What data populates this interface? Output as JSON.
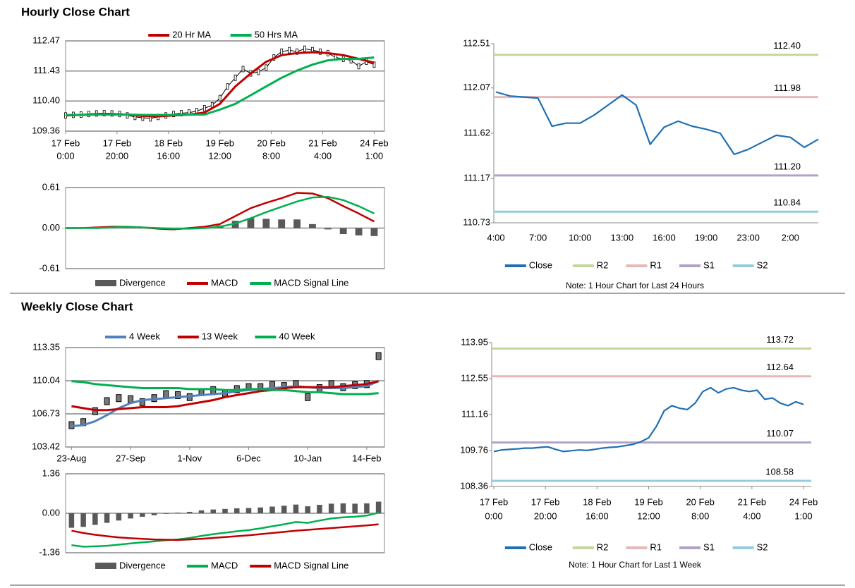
{
  "sections": [
    "Hourly Close Chart",
    "Weekly Close Chart"
  ],
  "chart_data": [
    {
      "type": "candlestick",
      "grid": true,
      "xlim": [
        0,
        124
      ],
      "xticks": [
        {
          "value": 0,
          "label": [
            "17 Feb",
            "0:00"
          ]
        },
        {
          "value": 20,
          "label": [
            "17 Feb",
            "20:00"
          ]
        },
        {
          "value": 40,
          "label": [
            "18 Feb",
            "16:00"
          ]
        },
        {
          "value": 60,
          "label": [
            "19 Feb",
            "12:00"
          ]
        },
        {
          "value": 80,
          "label": [
            "20 Feb",
            "8:00"
          ]
        },
        {
          "value": 100,
          "label": [
            "21 Feb",
            "4:00"
          ]
        },
        {
          "value": 120,
          "label": [
            "24 Feb",
            "1:00"
          ]
        }
      ],
      "ylim": [
        109.36,
        112.47
      ],
      "yticks": [
        109.36,
        {
          "value": 110.4,
          "label": "110.40"
        },
        111.43,
        112.47
      ],
      "close": {
        "color": "#000000",
        "x": [
          0,
          3,
          6,
          9,
          12,
          15,
          18,
          21,
          24,
          27,
          30,
          33,
          36,
          39,
          42,
          45,
          48,
          51,
          54,
          57,
          60,
          63,
          66,
          69,
          72,
          75,
          78,
          81,
          84,
          87,
          90,
          93,
          96,
          99,
          102,
          105,
          108,
          111,
          114,
          117,
          120
        ],
        "values": [
          109.9,
          109.92,
          109.93,
          109.95,
          109.97,
          109.98,
          109.97,
          109.95,
          109.9,
          109.85,
          109.82,
          109.8,
          109.85,
          109.9,
          109.95,
          109.98,
          110.0,
          110.05,
          110.15,
          110.25,
          110.5,
          110.9,
          111.2,
          111.5,
          111.35,
          111.4,
          111.55,
          111.9,
          112.1,
          112.15,
          112.1,
          112.2,
          112.15,
          112.1,
          112.05,
          111.9,
          111.85,
          111.8,
          111.6,
          111.75,
          111.65
        ]
      },
      "x": [
        0,
        6,
        12,
        18,
        24,
        30,
        36,
        42,
        48,
        54,
        60,
        66,
        72,
        78,
        84,
        90,
        96,
        102,
        108,
        114,
        120
      ],
      "series": [
        {
          "name": "20 Hr MA",
          "color": "#c00000",
          "values": [
            109.9,
            109.92,
            109.95,
            109.95,
            109.93,
            109.88,
            109.87,
            109.9,
            109.93,
            110.0,
            110.3,
            110.9,
            111.35,
            111.75,
            111.98,
            112.05,
            112.08,
            112.05,
            111.98,
            111.85,
            111.72
          ]
        },
        {
          "name": "50 Hrs MA",
          "color": "#00b050",
          "values": [
            109.92,
            109.92,
            109.93,
            109.93,
            109.93,
            109.92,
            109.92,
            109.92,
            109.93,
            109.93,
            110.1,
            110.3,
            110.6,
            110.9,
            111.2,
            111.45,
            111.65,
            111.8,
            111.85,
            111.85,
            111.9
          ]
        }
      ]
    },
    {
      "type": "macd",
      "grid": true,
      "xlim": [
        0,
        124
      ],
      "ylim": [
        -0.61,
        0.61
      ],
      "yticks": [
        -0.61,
        {
          "value": 0,
          "label": "0.00"
        },
        0.61
      ],
      "x": [
        0,
        6,
        12,
        18,
        24,
        30,
        36,
        42,
        48,
        54,
        60,
        66,
        72,
        78,
        84,
        90,
        96,
        102,
        108,
        114,
        120
      ],
      "series": [
        {
          "name": "Divergence",
          "color": "#595959",
          "style": "bar",
          "values": [
            0,
            0,
            0.01,
            0.01,
            0,
            0,
            -0.01,
            -0.01,
            0.01,
            0.02,
            0.04,
            0.11,
            0.15,
            0.14,
            0.13,
            0.13,
            0.06,
            -0.02,
            -0.09,
            -0.11,
            -0.12
          ]
        },
        {
          "name": "MACD",
          "color": "#c00000",
          "values": [
            0,
            0,
            0.01,
            0.02,
            0.02,
            0.01,
            -0.01,
            -0.02,
            0,
            0.02,
            0.06,
            0.18,
            0.3,
            0.38,
            0.45,
            0.53,
            0.52,
            0.45,
            0.33,
            0.22,
            0.1
          ]
        },
        {
          "name": "MACD Signal Line",
          "color": "#00b050",
          "values": [
            0,
            0,
            0,
            0.01,
            0.02,
            0.01,
            0,
            -0.01,
            -0.01,
            0,
            0.02,
            0.07,
            0.15,
            0.24,
            0.32,
            0.4,
            0.46,
            0.47,
            0.42,
            0.33,
            0.22
          ]
        }
      ]
    },
    {
      "type": "line",
      "grid": false,
      "categories": [
        "4:00",
        null,
        null,
        "7:00",
        null,
        null,
        "10:00",
        null,
        null,
        "13:00",
        null,
        null,
        "16:00",
        null,
        null,
        "19:00",
        null,
        null,
        "23:00",
        null,
        null,
        "2:00",
        null,
        null
      ],
      "ylim": [
        110.73,
        112.51
      ],
      "yticks": [
        110.73,
        111.17,
        111.62,
        112.07,
        112.51
      ],
      "series": [
        {
          "name": "Close",
          "color": "#1f6fb4",
          "values": [
            112.03,
            111.99,
            111.98,
            111.97,
            111.69,
            111.72,
            111.72,
            111.8,
            111.9,
            112.0,
            111.9,
            111.51,
            111.68,
            111.74,
            111.69,
            111.66,
            111.62,
            111.41,
            111.46,
            111.53,
            111.6,
            111.58,
            111.48,
            111.56
          ]
        },
        {
          "name": "R2",
          "color": "#c3d69b",
          "value": 112.4,
          "value_label": "112.40"
        },
        {
          "name": "R1",
          "color": "#e6b9b8",
          "value": 111.98,
          "value_label": "111.98"
        },
        {
          "name": "S1",
          "color": "#b3a2c7",
          "value": 111.2,
          "value_label": "111.20"
        },
        {
          "name": "S2",
          "color": "#93cddd",
          "value": 110.84,
          "value_label": "110.84"
        }
      ],
      "note": "Note: 1 Hour Chart for Last 24 Hours"
    },
    {
      "type": "candlestick",
      "grid": true,
      "xlim": [
        -0.5,
        26.5
      ],
      "xticks": [
        {
          "value": 0,
          "label": "23-Aug"
        },
        {
          "value": 5,
          "label": "27-Sep"
        },
        {
          "value": 10,
          "label": "1-Nov"
        },
        {
          "value": 15,
          "label": "6-Dec"
        },
        {
          "value": 20,
          "label": "10-Jan"
        },
        {
          "value": 25,
          "label": "14-Feb"
        }
      ],
      "ylim": [
        103.42,
        113.35
      ],
      "yticks": [
        103.42,
        106.73,
        110.04,
        113.35
      ],
      "x": [
        0,
        1,
        2,
        3,
        4,
        5,
        6,
        7,
        8,
        9,
        10,
        11,
        12,
        13,
        14,
        15,
        16,
        17,
        18,
        19,
        20,
        21,
        22,
        23,
        24,
        25,
        26
      ],
      "close": {
        "color": "#000000",
        "values": [
          105.6,
          105.9,
          107.0,
          108.0,
          108.3,
          108.2,
          107.9,
          108.3,
          108.7,
          108.6,
          108.4,
          108.9,
          109.1,
          108.8,
          109.2,
          109.4,
          109.4,
          109.6,
          109.5,
          109.7,
          108.4,
          109.3,
          109.7,
          109.4,
          109.6,
          109.7,
          112.5
        ]
      },
      "series": [
        {
          "name": "4 Week",
          "color": "#4f81bd",
          "values": [
            105.5,
            105.6,
            106.0,
            106.6,
            107.3,
            107.8,
            108.1,
            108.2,
            108.3,
            108.4,
            108.5,
            108.6,
            108.7,
            108.8,
            109.0,
            109.1,
            109.2,
            109.3,
            109.4,
            109.5,
            109.4,
            109.3,
            109.3,
            109.3,
            109.4,
            109.5,
            110.0
          ]
        },
        {
          "name": "13 Week",
          "color": "#c00000",
          "values": [
            107.5,
            107.3,
            107.1,
            107.1,
            107.2,
            107.3,
            107.4,
            107.4,
            107.4,
            107.5,
            107.7,
            107.9,
            108.1,
            108.4,
            108.6,
            108.8,
            109.0,
            109.1,
            109.3,
            109.4,
            109.4,
            109.4,
            109.4,
            109.5,
            109.6,
            109.7,
            110.0
          ]
        },
        {
          "name": "40 Week",
          "color": "#00b050",
          "values": [
            110.0,
            109.9,
            109.7,
            109.6,
            109.5,
            109.4,
            109.3,
            109.3,
            109.3,
            109.3,
            109.2,
            109.2,
            109.2,
            109.1,
            109.1,
            109.2,
            109.2,
            109.1,
            109.1,
            109.0,
            108.9,
            108.9,
            108.8,
            108.7,
            108.7,
            108.7,
            108.8
          ]
        }
      ]
    },
    {
      "type": "macd",
      "grid": true,
      "xlim": [
        -0.5,
        26.5
      ],
      "ylim": [
        -1.36,
        1.36
      ],
      "yticks": [
        -1.36,
        {
          "value": 0,
          "label": "0.00"
        },
        1.36
      ],
      "x": [
        0,
        1,
        2,
        3,
        4,
        5,
        6,
        7,
        8,
        9,
        10,
        11,
        12,
        13,
        14,
        15,
        16,
        17,
        18,
        19,
        20,
        21,
        22,
        23,
        24,
        25,
        26
      ],
      "series": [
        {
          "name": "Divergence",
          "color": "#595959",
          "style": "bar",
          "values": [
            -0.5,
            -0.47,
            -0.4,
            -0.33,
            -0.25,
            -0.18,
            -0.12,
            -0.07,
            -0.02,
            0.02,
            0.05,
            0.1,
            0.13,
            0.15,
            0.17,
            0.18,
            0.2,
            0.23,
            0.26,
            0.3,
            0.24,
            0.29,
            0.33,
            0.34,
            0.33,
            0.34,
            0.4
          ]
        },
        {
          "name": "MACD",
          "color": "#00b050",
          "values": [
            -1.1,
            -1.15,
            -1.14,
            -1.12,
            -1.08,
            -1.04,
            -1.0,
            -0.97,
            -0.93,
            -0.9,
            -0.85,
            -0.78,
            -0.72,
            -0.67,
            -0.62,
            -0.58,
            -0.52,
            -0.45,
            -0.38,
            -0.3,
            -0.33,
            -0.25,
            -0.18,
            -0.14,
            -0.12,
            -0.08,
            0.02
          ]
        },
        {
          "name": "MACD Signal Line",
          "color": "#c00000",
          "values": [
            -0.6,
            -0.68,
            -0.74,
            -0.79,
            -0.83,
            -0.86,
            -0.88,
            -0.9,
            -0.91,
            -0.92,
            -0.9,
            -0.88,
            -0.85,
            -0.82,
            -0.79,
            -0.76,
            -0.72,
            -0.68,
            -0.64,
            -0.6,
            -0.57,
            -0.54,
            -0.51,
            -0.48,
            -0.45,
            -0.42,
            -0.38
          ]
        }
      ]
    },
    {
      "type": "line",
      "grid": false,
      "xlim": [
        0,
        123
      ],
      "xticks": [
        {
          "value": 0,
          "label": [
            "17 Feb",
            "0:00"
          ]
        },
        {
          "value": 20,
          "label": [
            "17 Feb",
            "20:00"
          ]
        },
        {
          "value": 40,
          "label": [
            "18 Feb",
            "16:00"
          ]
        },
        {
          "value": 60,
          "label": [
            "19 Feb",
            "12:00"
          ]
        },
        {
          "value": 80,
          "label": [
            "20 Feb",
            "8:00"
          ]
        },
        {
          "value": 100,
          "label": [
            "21 Feb",
            "4:00"
          ]
        },
        {
          "value": 120,
          "label": [
            "24 Feb",
            "1:00"
          ]
        }
      ],
      "ylim": [
        108.36,
        113.95
      ],
      "yticks": [
        108.36,
        109.76,
        111.16,
        112.55,
        113.95
      ],
      "series": [
        {
          "name": "Close",
          "color": "#1f6fb4",
          "x": [
            0,
            3,
            6,
            9,
            12,
            15,
            18,
            21,
            24,
            27,
            30,
            33,
            36,
            39,
            42,
            45,
            48,
            51,
            54,
            57,
            60,
            63,
            66,
            69,
            72,
            75,
            78,
            81,
            84,
            87,
            90,
            93,
            96,
            99,
            102,
            105,
            108,
            111,
            114,
            117,
            120
          ],
          "values": [
            109.72,
            109.78,
            109.8,
            109.82,
            109.85,
            109.85,
            109.88,
            109.9,
            109.8,
            109.72,
            109.75,
            109.78,
            109.76,
            109.8,
            109.85,
            109.88,
            109.9,
            109.95,
            110.0,
            110.1,
            110.25,
            110.7,
            111.3,
            111.5,
            111.4,
            111.35,
            111.6,
            112.05,
            112.2,
            112.0,
            112.15,
            112.2,
            112.1,
            112.05,
            112.1,
            111.75,
            111.8,
            111.6,
            111.5,
            111.65,
            111.55
          ]
        },
        {
          "name": "R2",
          "color": "#c3d69b",
          "value": 113.72,
          "value_label": "113.72"
        },
        {
          "name": "R1",
          "color": "#e6b9b8",
          "value": 112.64,
          "value_label": "112.64"
        },
        {
          "name": "S1",
          "color": "#b3a2c7",
          "value": 110.07,
          "value_label": "110.07"
        },
        {
          "name": "S2",
          "color": "#93cddd",
          "value": 108.58,
          "value_label": "108.58"
        }
      ],
      "note": "Note: 1 Hour Chart for Last 1 Week"
    }
  ]
}
